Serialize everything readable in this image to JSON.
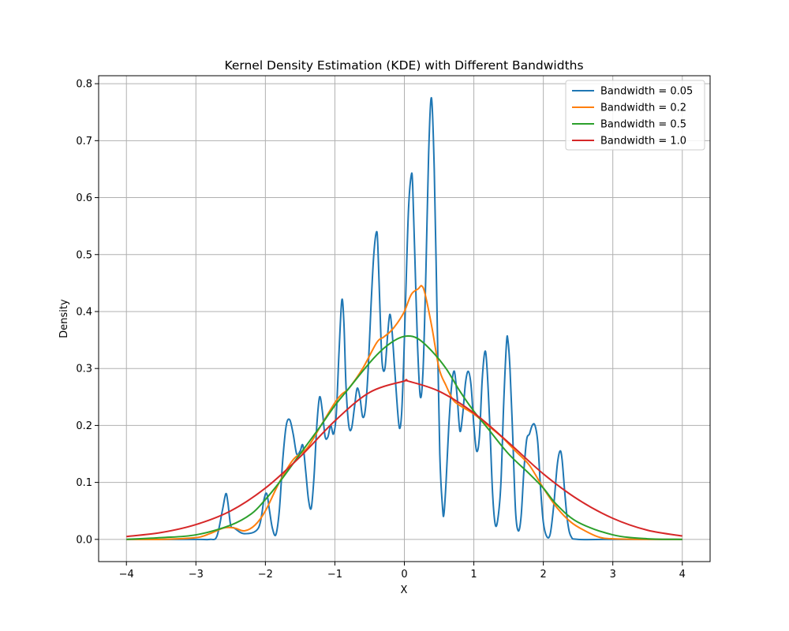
{
  "chart_data": {
    "type": "line",
    "title": "Kernel Density Estimation (KDE) with Different Bandwidths",
    "xlabel": "X",
    "ylabel": "Density",
    "xlim": [
      -4.4,
      4.4
    ],
    "ylim": [
      -0.039,
      0.814
    ],
    "x_ticks": [
      -4,
      -3,
      -2,
      -1,
      0,
      1,
      2,
      3,
      4
    ],
    "x_tick_labels": [
      "−4",
      "−3",
      "−2",
      "−1",
      "0",
      "1",
      "2",
      "3",
      "4"
    ],
    "y_ticks": [
      0.0,
      0.1,
      0.2,
      0.3,
      0.4,
      0.5,
      0.6,
      0.7,
      0.8
    ],
    "y_tick_labels": [
      "0.0",
      "0.1",
      "0.2",
      "0.3",
      "0.4",
      "0.5",
      "0.6",
      "0.7",
      "0.8"
    ],
    "grid": true,
    "legend_position": "top-right",
    "series": [
      {
        "name": "Bandwidth = 0.05",
        "color": "#1f77b4",
        "x": [
          -4.0,
          -3.0,
          -2.8,
          -2.7,
          -2.62,
          -2.57,
          -2.54,
          -2.5,
          -2.45,
          -2.3,
          -2.1,
          -2.02,
          -1.98,
          -1.94,
          -1.9,
          -1.85,
          -1.8,
          -1.75,
          -1.7,
          -1.65,
          -1.6,
          -1.55,
          -1.5,
          -1.46,
          -1.42,
          -1.38,
          -1.34,
          -1.3,
          -1.26,
          -1.22,
          -1.18,
          -1.14,
          -1.1,
          -1.06,
          -1.02,
          -0.98,
          -0.94,
          -0.9,
          -0.87,
          -0.84,
          -0.8,
          -0.76,
          -0.72,
          -0.68,
          -0.64,
          -0.6,
          -0.56,
          -0.52,
          -0.48,
          -0.44,
          -0.4,
          -0.38,
          -0.35,
          -0.32,
          -0.28,
          -0.24,
          -0.21,
          -0.18,
          -0.14,
          -0.1,
          -0.07,
          -0.04,
          -0.01,
          0.02,
          0.06,
          0.1,
          0.12,
          0.15,
          0.19,
          0.23,
          0.27,
          0.31,
          0.35,
          0.39,
          0.43,
          0.47,
          0.51,
          0.55,
          0.57,
          0.6,
          0.64,
          0.68,
          0.72,
          0.76,
          0.8,
          0.84,
          0.88,
          0.92,
          0.96,
          1.0,
          1.04,
          1.08,
          1.12,
          1.16,
          1.19,
          1.23,
          1.27,
          1.31,
          1.35,
          1.39,
          1.43,
          1.47,
          1.49,
          1.52,
          1.56,
          1.6,
          1.64,
          1.68,
          1.72,
          1.76,
          1.8,
          1.84,
          1.88,
          1.92,
          1.96,
          2.0,
          2.05,
          2.1,
          2.15,
          2.2,
          2.24,
          2.27,
          2.31,
          2.35,
          2.4,
          2.5,
          3.0,
          4.0
        ],
        "y": [
          0.0,
          0.0,
          0.0,
          0.005,
          0.05,
          0.08,
          0.065,
          0.025,
          0.02,
          0.01,
          0.02,
          0.07,
          0.08,
          0.05,
          0.02,
          0.008,
          0.05,
          0.14,
          0.2,
          0.21,
          0.185,
          0.15,
          0.155,
          0.165,
          0.12,
          0.07,
          0.055,
          0.11,
          0.2,
          0.25,
          0.225,
          0.18,
          0.18,
          0.2,
          0.185,
          0.22,
          0.33,
          0.42,
          0.38,
          0.27,
          0.2,
          0.195,
          0.23,
          0.265,
          0.25,
          0.215,
          0.23,
          0.3,
          0.41,
          0.5,
          0.54,
          0.51,
          0.4,
          0.31,
          0.3,
          0.36,
          0.395,
          0.37,
          0.3,
          0.23,
          0.195,
          0.22,
          0.31,
          0.43,
          0.58,
          0.64,
          0.62,
          0.5,
          0.34,
          0.25,
          0.3,
          0.47,
          0.68,
          0.775,
          0.65,
          0.4,
          0.15,
          0.055,
          0.045,
          0.1,
          0.2,
          0.27,
          0.295,
          0.25,
          0.19,
          0.22,
          0.275,
          0.295,
          0.27,
          0.2,
          0.155,
          0.18,
          0.28,
          0.33,
          0.3,
          0.2,
          0.08,
          0.025,
          0.04,
          0.1,
          0.24,
          0.345,
          0.35,
          0.3,
          0.18,
          0.05,
          0.015,
          0.04,
          0.12,
          0.175,
          0.185,
          0.2,
          0.2,
          0.17,
          0.09,
          0.03,
          0.005,
          0.01,
          0.06,
          0.13,
          0.155,
          0.14,
          0.08,
          0.03,
          0.005,
          0.0,
          0.0,
          0.0
        ]
      },
      {
        "name": "Bandwidth = 0.2",
        "color": "#ff7f0e",
        "x": [
          -4.0,
          -3.5,
          -3.0,
          -2.8,
          -2.6,
          -2.45,
          -2.3,
          -2.15,
          -2.0,
          -1.8,
          -1.6,
          -1.4,
          -1.2,
          -1.0,
          -0.9,
          -0.8,
          -0.6,
          -0.4,
          -0.3,
          -0.2,
          -0.1,
          0.0,
          0.1,
          0.2,
          0.25,
          0.3,
          0.4,
          0.5,
          0.6,
          0.7,
          0.8,
          1.0,
          1.2,
          1.4,
          1.6,
          1.8,
          2.0,
          2.2,
          2.4,
          2.6,
          2.8,
          3.0,
          3.5,
          4.0
        ],
        "y": [
          0.0,
          0.0,
          0.003,
          0.01,
          0.02,
          0.02,
          0.015,
          0.025,
          0.05,
          0.1,
          0.14,
          0.16,
          0.2,
          0.24,
          0.255,
          0.265,
          0.3,
          0.345,
          0.355,
          0.365,
          0.38,
          0.4,
          0.43,
          0.44,
          0.445,
          0.43,
          0.37,
          0.3,
          0.27,
          0.245,
          0.235,
          0.22,
          0.2,
          0.18,
          0.155,
          0.13,
          0.09,
          0.055,
          0.03,
          0.015,
          0.004,
          0.001,
          0.0,
          0.0
        ]
      },
      {
        "name": "Bandwidth = 0.5",
        "color": "#2ca02c",
        "x": [
          -4.0,
          -3.5,
          -3.0,
          -2.5,
          -2.2,
          -2.0,
          -1.8,
          -1.5,
          -1.2,
          -1.0,
          -0.8,
          -0.5,
          -0.3,
          -0.1,
          0.05,
          0.2,
          0.4,
          0.6,
          0.8,
          1.0,
          1.2,
          1.5,
          1.8,
          2.0,
          2.2,
          2.5,
          3.0,
          3.5,
          4.0
        ],
        "y": [
          0.0,
          0.003,
          0.008,
          0.025,
          0.045,
          0.07,
          0.1,
          0.15,
          0.2,
          0.235,
          0.265,
          0.31,
          0.335,
          0.352,
          0.357,
          0.352,
          0.33,
          0.3,
          0.26,
          0.225,
          0.195,
          0.15,
          0.115,
          0.09,
          0.06,
          0.03,
          0.008,
          0.001,
          0.0
        ]
      },
      {
        "name": "Bandwidth = 1.0",
        "color": "#d62728",
        "x": [
          -4.0,
          -3.5,
          -3.0,
          -2.5,
          -2.0,
          -1.5,
          -1.0,
          -0.5,
          0.0,
          0.05,
          0.5,
          1.0,
          1.5,
          2.0,
          2.5,
          3.0,
          3.5,
          4.0
        ],
        "y": [
          0.005,
          0.012,
          0.026,
          0.05,
          0.09,
          0.145,
          0.208,
          0.258,
          0.278,
          0.278,
          0.26,
          0.222,
          0.17,
          0.115,
          0.07,
          0.037,
          0.016,
          0.006
        ]
      }
    ]
  }
}
